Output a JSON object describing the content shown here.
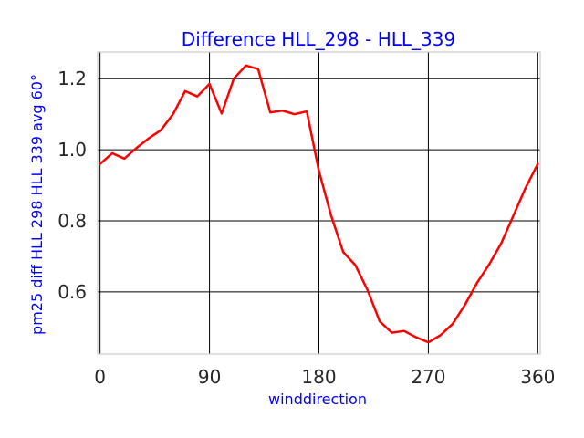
{
  "chart_data": {
    "type": "line",
    "title": "Difference HLL_298 - HLL_339",
    "xlabel": "winddirection",
    "ylabel": "pm25 diff HLL 298 HLL 339 avg 60°",
    "xlim": [
      -2,
      362
    ],
    "ylim": [
      0.425,
      1.275
    ],
    "x_ticks": [
      0,
      90,
      180,
      270,
      360
    ],
    "x_tick_labels": [
      "0",
      "90",
      "180",
      "270",
      "360"
    ],
    "y_ticks": [
      0.6,
      0.8,
      1.0,
      1.2
    ],
    "y_tick_labels": [
      "0.6",
      "0.8",
      "1.0",
      "1.2"
    ],
    "grid": true,
    "series": [
      {
        "color": "#ff0000",
        "x": [
          0,
          10,
          20,
          30,
          40,
          50,
          60,
          70,
          80,
          90,
          100,
          110,
          120,
          130,
          140,
          150,
          160,
          170,
          180,
          190,
          200,
          210,
          220,
          230,
          240,
          250,
          260,
          270,
          280,
          290,
          300,
          310,
          320,
          330,
          340,
          350,
          360
        ],
        "y": [
          0.96,
          0.99,
          0.975,
          1.005,
          1.032,
          1.055,
          1.1,
          1.165,
          1.15,
          1.185,
          1.102,
          1.2,
          1.237,
          1.227,
          1.105,
          1.11,
          1.1,
          1.108,
          0.94,
          0.815,
          0.712,
          0.675,
          0.605,
          0.517,
          0.485,
          0.49,
          0.472,
          0.458,
          0.478,
          0.51,
          0.563,
          0.625,
          0.677,
          0.737,
          0.815,
          0.893,
          0.96
        ]
      }
    ]
  }
}
